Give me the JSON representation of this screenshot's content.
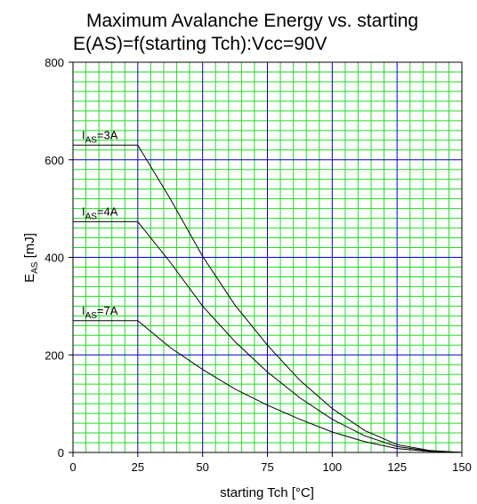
{
  "chart_data": {
    "type": "line",
    "title": "Maximum Avalanche Energy vs. starting",
    "subtitle": "E(AS)=f(starting Tch):Vcc=90V",
    "xlabel": "starting Tch [°C]",
    "ylabel_main": "E",
    "ylabel_sub": "AS",
    "ylabel_unit": " [mJ]",
    "xlim": [
      0,
      150
    ],
    "ylim": [
      0,
      800
    ],
    "x_ticks": [
      "0",
      "25",
      "50",
      "75",
      "100",
      "125",
      "150"
    ],
    "y_ticks": [
      "0",
      "200",
      "400",
      "600",
      "800"
    ],
    "grid": true,
    "colors": {
      "major_grid": "#0000cc",
      "minor_grid": "#22dd22",
      "line": "#000000",
      "frame": "#000000"
    },
    "series": [
      {
        "label_main": "I",
        "label_sub": "AS",
        "label_val": "=3A",
        "x": [
          0,
          25,
          37.5,
          50,
          62.5,
          75,
          87.5,
          100,
          112.5,
          125,
          137.5,
          150
        ],
        "y": [
          630,
          630,
          520,
          402,
          302,
          220,
          148,
          90,
          45,
          16,
          4,
          0
        ]
      },
      {
        "label_main": "I",
        "label_sub": "AS",
        "label_val": "=4A",
        "x": [
          0,
          25,
          37.5,
          50,
          62.5,
          75,
          87.5,
          100,
          112.5,
          125,
          137.5,
          150
        ],
        "y": [
          473,
          473,
          390,
          300,
          227,
          165,
          112,
          68,
          34,
          12,
          3,
          0
        ]
      },
      {
        "label_main": "I",
        "label_sub": "AS",
        "label_val": "=7A",
        "x": [
          0,
          25,
          37.5,
          50,
          62.5,
          75,
          87.5,
          100,
          112.5,
          125,
          137.5,
          150
        ],
        "y": [
          270,
          270,
          215,
          170,
          130,
          97,
          68,
          42,
          22,
          8,
          2,
          0
        ]
      }
    ]
  }
}
